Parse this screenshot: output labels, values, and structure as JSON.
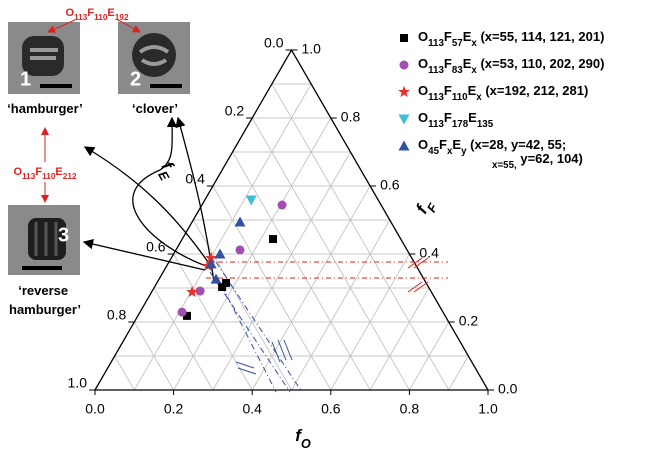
{
  "chart_data": {
    "type": "ternary",
    "axis_labels": {
      "bottom": "fO",
      "left": "fE",
      "right": "fF"
    },
    "xlim": [
      0,
      1
    ],
    "ylim": [
      0,
      1
    ],
    "xticks": [
      {
        "value": 0,
        "label": "0.0"
      },
      0.2,
      0.4,
      0.6,
      0.8,
      {
        "value": 1,
        "label": "1.0"
      }
    ],
    "yticks": [
      {
        "value": 0,
        "label": "0.0"
      },
      0.2,
      0.4,
      0.6,
      0.8,
      {
        "value": 1,
        "label": "1.0"
      }
    ],
    "eticks": [
      {
        "value": 0,
        "label": "0.0"
      },
      0.2,
      0.4,
      0.6,
      0.8,
      {
        "value": 1,
        "label": "1.0"
      }
    ],
    "grid": true,
    "series": [
      {
        "name": "O113F57Ex (x=55, 114, 121, 201)",
        "color": "#000000",
        "marker": "square",
        "fO": [
          0.125,
          0.172,
          0.176,
          0.231
        ],
        "fF": [
          0.218,
          0.303,
          0.315,
          0.444
        ]
      },
      {
        "name": "O113F83Ex (x=53, 110, 202, 290)",
        "color": "#a050b0",
        "marker": "circle",
        "fO": [
          0.107,
          0.122,
          0.163,
          0.204
        ],
        "fF": [
          0.229,
          0.291,
          0.412,
          0.544
        ]
      },
      {
        "name": "O113F110Ex (x=192, 212, 281)",
        "color": "#e8302a",
        "marker": "star",
        "fO": [
          0.103,
          0.105,
          0.101
        ],
        "fF": [
          0.288,
          0.365,
          0.388
        ]
      },
      {
        "name": "O113F178E135",
        "color": "#3cc0d8",
        "marker": "triangle-down",
        "fO": [
          0.118
        ],
        "fF": [
          0.559
        ]
      },
      {
        "name": "O45FxEy (x=28, y=42, 55;\nx=55, y=62, 104)",
        "color": "#3050a0",
        "marker": "triangle",
        "fO": [
          0.145,
          0.11,
          0.118,
          0.122
        ],
        "fF": [
          0.326,
          0.371,
          0.4,
          0.494
        ]
      }
    ]
  },
  "insets": {
    "label_top": "O113F110E192",
    "label_side": "O113F110E212",
    "images": [
      {
        "number": "1",
        "caption": "‘hamburger’"
      },
      {
        "number": "2",
        "caption": "‘clover’"
      },
      {
        "number": "3",
        "caption": "‘reverse\nhamburger’"
      }
    ]
  }
}
